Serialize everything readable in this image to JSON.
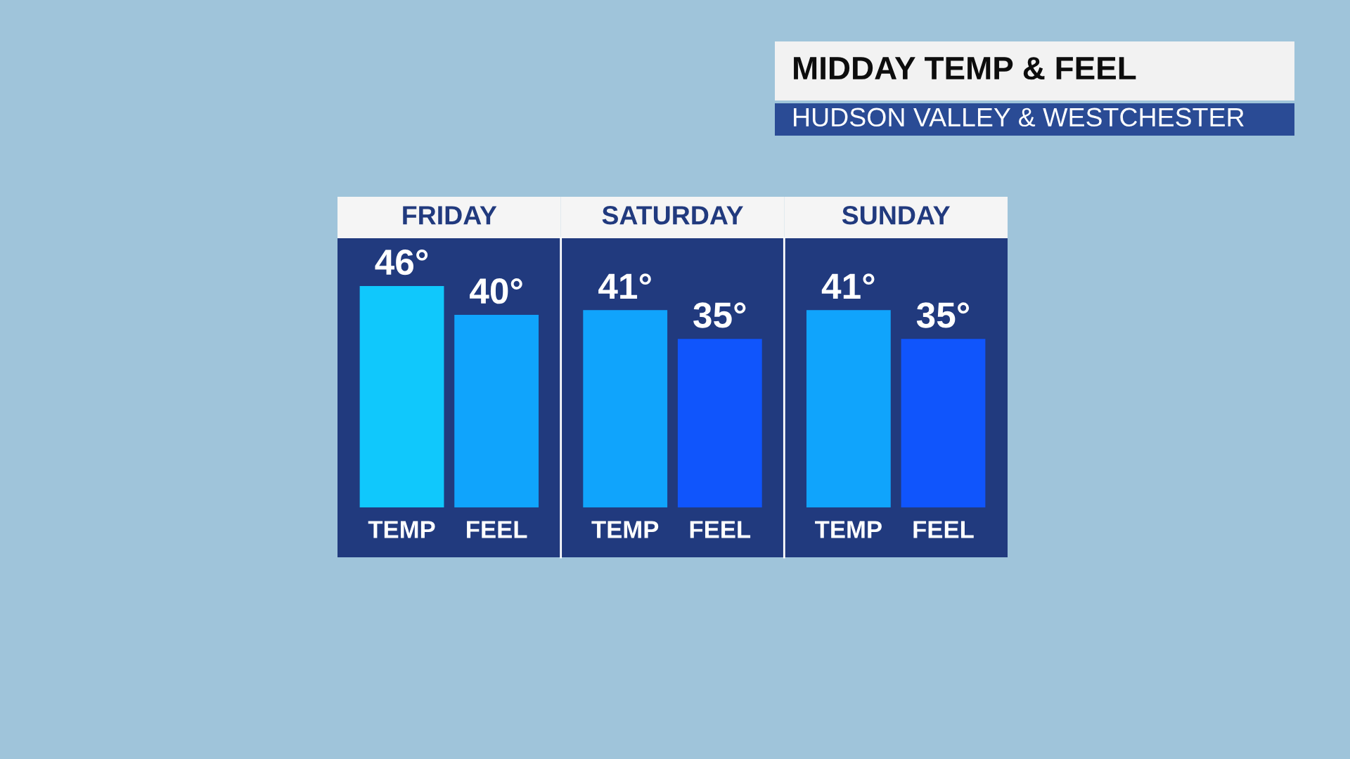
{
  "chart_data": [
    {
      "type": "other",
      "title": "MIDDAY TEMP & FEEL",
      "subtitle": "HUDSON VALLEY & WESTCHESTER"
    },
    {
      "type": "bar",
      "title": "FRIDAY",
      "categories": [
        "TEMP",
        "FEEL"
      ],
      "values": [
        46,
        40
      ],
      "colors": [
        "#10c8fc",
        "#10a4fc"
      ],
      "value_labels": [
        "46°",
        "40°"
      ]
    },
    {
      "type": "bar",
      "title": "SATURDAY",
      "categories": [
        "TEMP",
        "FEEL"
      ],
      "values": [
        41,
        35
      ],
      "colors": [
        "#10a4fc",
        "#1055fc"
      ],
      "value_labels": [
        "41°",
        "35°"
      ]
    },
    {
      "type": "bar",
      "title": "SUNDAY",
      "categories": [
        "TEMP",
        "FEEL"
      ],
      "values": [
        41,
        35
      ],
      "colors": [
        "#10a4fc",
        "#1055fc"
      ],
      "value_labels": [
        "41°",
        "35°"
      ]
    }
  ]
}
